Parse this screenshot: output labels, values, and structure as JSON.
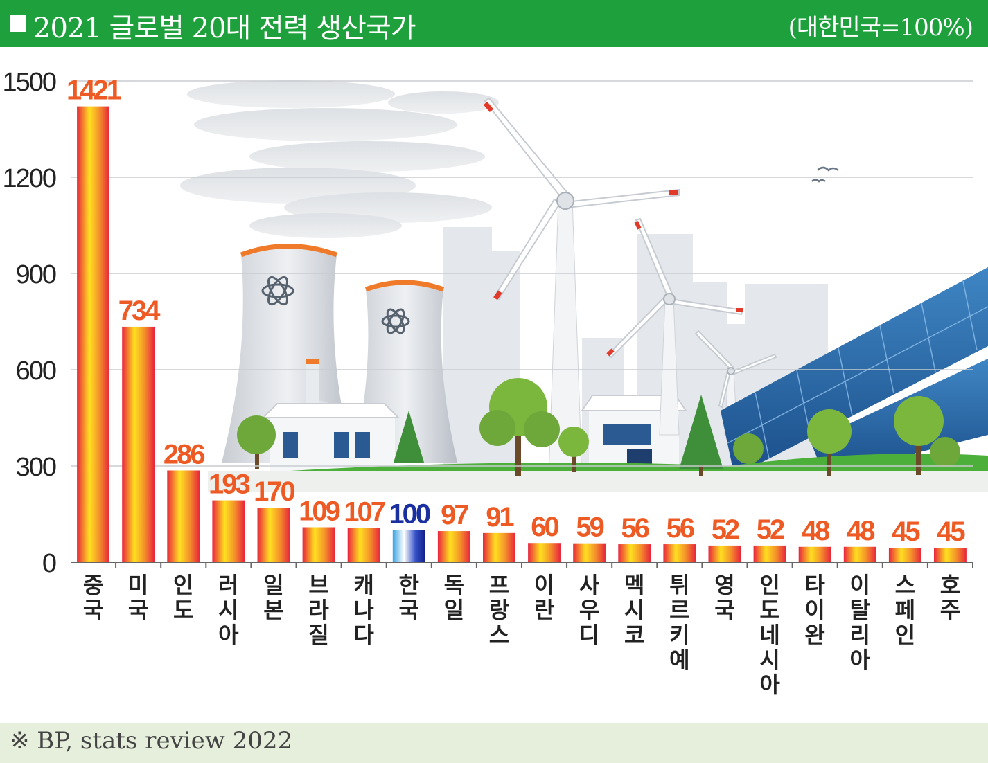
{
  "header": {
    "title": "2021 글로벌 20대 전력 생산국가",
    "unit": "(대한민국=100%)"
  },
  "footer": {
    "source": "※ BP, stats review 2022"
  },
  "colors": {
    "header_bg": "#1ea03c",
    "bar_orange_red": "#e8243c",
    "bar_yellow": "#ffe020",
    "korea_blue": "#1a2fa0",
    "label_orange": "#ee5a24"
  },
  "chart_data": {
    "type": "bar",
    "title": "2021 글로벌 20대 전력 생산국가",
    "subtitle": "(대한민국=100%)",
    "xlabel": "",
    "ylabel": "",
    "ylim": [
      0,
      1500
    ],
    "yticks": [
      0,
      300,
      600,
      900,
      1200,
      1500
    ],
    "grid": true,
    "highlight": "한국",
    "categories": [
      "중국",
      "미국",
      "인도",
      "러시아",
      "일본",
      "브라질",
      "캐나다",
      "한국",
      "독일",
      "프랑스",
      "이란",
      "사우디",
      "멕시코",
      "튀르키예",
      "영국",
      "인도네시아",
      "타이완",
      "이탈리아",
      "스페인",
      "호주"
    ],
    "values": [
      1421,
      734,
      286,
      193,
      170,
      109,
      107,
      100,
      97,
      91,
      60,
      59,
      56,
      56,
      52,
      52,
      48,
      48,
      45,
      45
    ]
  }
}
